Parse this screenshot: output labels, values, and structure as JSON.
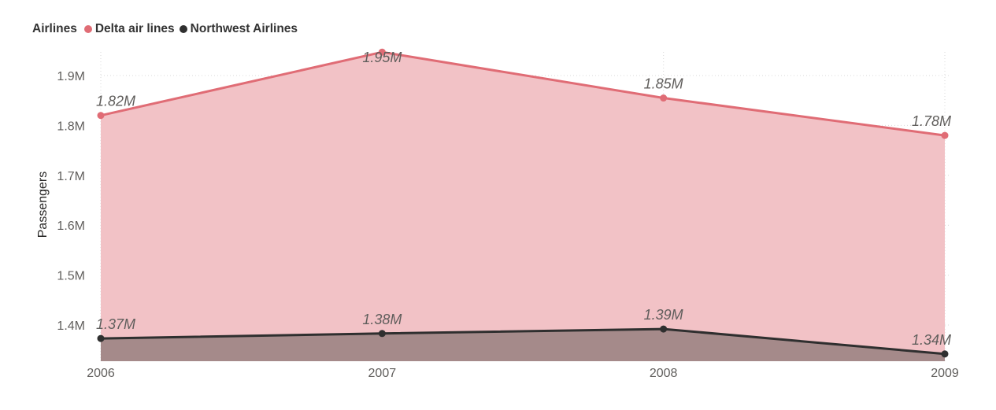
{
  "legend": {
    "title": "Airlines"
  },
  "chart_data": {
    "type": "area",
    "x": [
      2006,
      2007,
      2008,
      2009
    ],
    "x_tick_labels": [
      "2006",
      "2007",
      "2008",
      "2009"
    ],
    "ylabel": "Passengers",
    "xlabel": "",
    "ylim": [
      1.33,
      1.96
    ],
    "y_ticks": [
      1.4,
      1.5,
      1.6,
      1.7,
      1.8,
      1.9
    ],
    "y_tick_labels": [
      "1.4M",
      "1.5M",
      "1.6M",
      "1.7M",
      "1.8M",
      "1.9M"
    ],
    "grid": true,
    "legend_position": "top-left",
    "series": [
      {
        "name": "Delta air lines",
        "color": "#e06c75",
        "fill": "#f2c2c6",
        "values": [
          1.82,
          1.947,
          1.855,
          1.78
        ],
        "labels": [
          "1.82M",
          "1.95M",
          "1.85M",
          "1.78M"
        ]
      },
      {
        "name": "Northwest Airlines",
        "color": "#2f2f2f",
        "fill": "#a58a8a",
        "values": [
          1.373,
          1.383,
          1.392,
          1.342
        ],
        "labels": [
          "1.37M",
          "1.38M",
          "1.39M",
          "1.34M"
        ]
      }
    ]
  }
}
